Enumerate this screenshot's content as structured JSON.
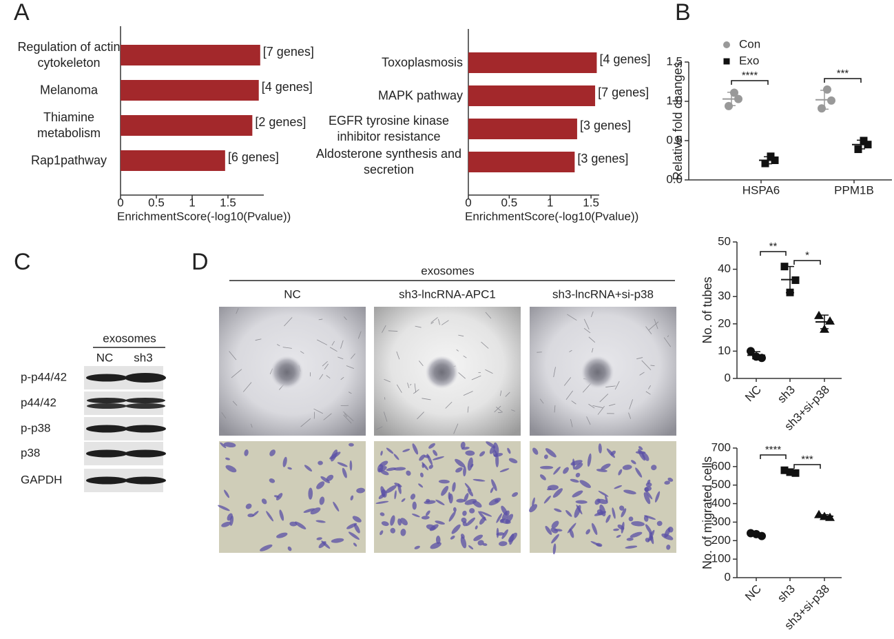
{
  "panels": [
    "A",
    "B",
    "C",
    "D"
  ],
  "chart_data": [
    {
      "type": "bar",
      "orientation": "horizontal",
      "categories": [
        "Regulation of actin cytokeleton",
        "Melanoma",
        "Thiamine metabolism",
        "Rap1pathway"
      ],
      "values": [
        1.95,
        1.93,
        1.84,
        1.46
      ],
      "notes": [
        "[7 genes]",
        "[4 genes]",
        "[2 genes]",
        "[6 genes]"
      ],
      "color": "#a3282b",
      "xlim": [
        0,
        2
      ],
      "xticks": [
        0,
        0.5,
        1,
        1.5
      ],
      "x_label": "EnrichmentScore(-log10(Pvalue))"
    },
    {
      "type": "bar",
      "orientation": "horizontal",
      "categories": [
        "Toxoplasmosis",
        "MAPK pathway",
        "EGFR tyrosine kinase inhibitor resistance",
        "Aldosterone synthesis and secretion"
      ],
      "values": [
        1.57,
        1.55,
        1.33,
        1.3
      ],
      "notes": [
        "[4 genes]",
        "[7 genes]",
        "[3 genes]",
        "[3 genes]"
      ],
      "color": "#a3282b",
      "xlim": [
        0,
        1.6
      ],
      "xticks": [
        0,
        0.5,
        1,
        1.5
      ],
      "x_label": "EnrichmentScore(-log10(Pvalue))"
    },
    {
      "type": "dot",
      "y_label": "Relative fold changes",
      "categories": [
        "HSPA6",
        "PPM1B"
      ],
      "series": [
        {
          "name": "Con",
          "color": "#999999",
          "marker": "circle",
          "values": [
            [
              1.11,
              1.03,
              0.94
            ],
            [
              1.15,
              1.01,
              0.91
            ]
          ],
          "means": [
            1.03,
            1.02
          ],
          "errors": [
            0.085,
            0.12
          ]
        },
        {
          "name": "Exo",
          "color": "#111111",
          "marker": "square",
          "values": [
            [
              0.3,
              0.25,
              0.21
            ],
            [
              0.5,
              0.45,
              0.39
            ]
          ],
          "means": [
            0.25,
            0.45
          ],
          "errors": [
            0.045,
            0.055
          ]
        }
      ],
      "annotations": [
        "****",
        "***"
      ],
      "ylim": [
        0,
        1.5
      ],
      "yticks": [
        {
          "value": 0,
          "label": "0.0"
        },
        0.5,
        {
          "value": 1,
          "label": "1.0"
        },
        1.5
      ],
      "legend": "top-left"
    },
    {
      "type": "dot",
      "y_label": "No. of tubes",
      "categories": [
        "NC",
        "sh3",
        "sh3+si-p38"
      ],
      "markers": [
        "circle",
        "square",
        "triangle"
      ],
      "series": [
        {
          "color": "#111111",
          "values": [
            [
              10,
              7.5,
              8
            ],
            [
              41,
              36,
              31.5
            ],
            [
              23,
              21,
              18
            ]
          ],
          "means": [
            8.5,
            36.2,
            20.7
          ],
          "errors": [
            1.3,
            4.8,
            2.5
          ]
        }
      ],
      "annotations": [
        "**",
        "*"
      ],
      "ylim": [
        0,
        50
      ],
      "yticks": [
        0,
        10,
        20,
        30,
        40,
        50
      ]
    },
    {
      "type": "dot",
      "y_label": "No. of migrated cells",
      "categories": [
        "NC",
        "sh3",
        "sh3+si-p38"
      ],
      "markers": [
        "circle",
        "square",
        "triangle"
      ],
      "series": [
        {
          "color": "#111111",
          "values": [
            [
              240,
              225,
              235
            ],
            [
              580,
              565,
              570
            ],
            [
              340,
              325,
              330
            ]
          ],
          "means": [
            233,
            572,
            332
          ],
          "errors": [
            8,
            8,
            8
          ]
        }
      ],
      "annotations": [
        "****",
        "***"
      ],
      "ylim": [
        0,
        700
      ],
      "yticks": [
        0,
        100,
        200,
        300,
        400,
        500,
        600,
        700
      ]
    }
  ],
  "blot": {
    "group": "exosomes",
    "lanes": [
      "NC",
      "sh3"
    ],
    "rows": [
      "p-p44/42",
      "p44/42",
      "p-p38",
      "p38",
      "GAPDH"
    ]
  },
  "images": {
    "group": "exosomes",
    "columns": [
      "NC",
      "sh3-lncRNA-APC1",
      "sh3-lncRNA+si-p38"
    ]
  }
}
